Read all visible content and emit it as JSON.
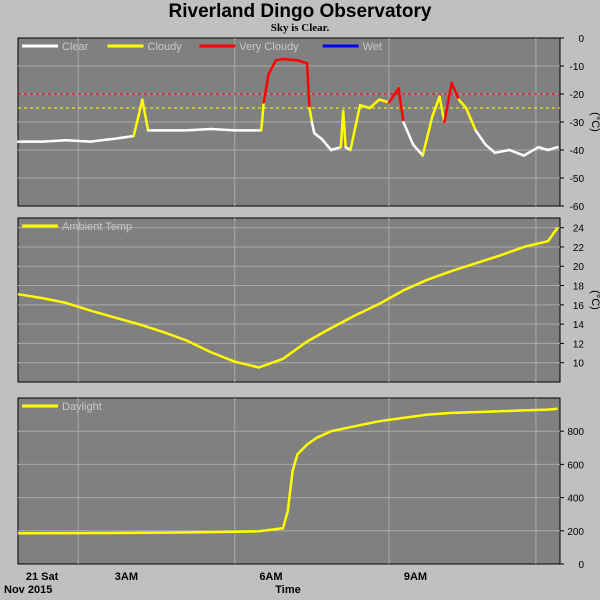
{
  "title": "Riverland Dingo Observatory",
  "subtitle": "Sky is Clear.",
  "x_axis": {
    "tick_labels": [
      "21 Sat",
      "3AM",
      "6AM",
      "9AM"
    ],
    "left_label": "Nov 2015",
    "center_label": "Time"
  },
  "colors": {
    "clear": "#ffffff",
    "cloudy": "#ffff00",
    "very_cloudy": "#ff0000",
    "wet": "#0000ff",
    "panel": "#808080",
    "grid": "#aaaaaa"
  },
  "chart_data": [
    {
      "type": "line",
      "panel": "sky",
      "legend": [
        "Clear",
        "Cloudy",
        "Very Cloudy",
        "Wet"
      ],
      "ylabel": "(°C)",
      "ylim": [
        -60,
        0
      ],
      "yticks": [
        0,
        -10,
        -20,
        -30,
        -40,
        -50,
        -60
      ],
      "thresholds": [
        {
          "value": -20,
          "color": "#ff0000"
        },
        {
          "value": -25,
          "color": "#ffff00"
        }
      ],
      "x_hours": [
        0,
        0.5,
        1,
        1.5,
        2,
        2.4,
        2.5,
        2.58,
        2.7,
        3,
        3.5,
        4,
        4.5,
        5.05,
        5.1,
        5.2,
        5.35,
        5.5,
        5.8,
        6.0,
        6.05,
        6.1,
        6.15,
        6.3,
        6.5,
        6.7,
        6.75,
        6.8,
        6.9,
        7.1,
        7.3,
        7.5,
        7.7,
        7.9,
        8.0,
        8.2,
        8.4,
        8.6,
        8.75,
        8.85,
        9.0,
        9.15,
        9.3,
        9.5,
        9.7,
        9.9,
        10.2,
        10.5,
        10.8,
        11.0,
        11.2
      ],
      "values": [
        -37,
        -37,
        -36.5,
        -37,
        -36,
        -35,
        -28,
        -22,
        -33,
        -33,
        -33,
        -32.5,
        -33,
        -33,
        -23,
        -13,
        -8,
        -7.5,
        -8,
        -9,
        -25,
        -30,
        -34,
        -36,
        -40,
        -39,
        -26,
        -39,
        -40,
        -24,
        -25,
        -22,
        -23,
        -18,
        -30,
        -38,
        -42,
        -28,
        -21,
        -30,
        -16,
        -22,
        -25,
        -33,
        -38,
        -41,
        -40,
        -42,
        -39,
        -40,
        -39
      ]
    },
    {
      "type": "line",
      "panel": "ambient",
      "legend": [
        "Ambient Temp"
      ],
      "ylabel": "(°C)",
      "ylim": [
        8,
        25
      ],
      "yticks": [
        10,
        12,
        14,
        16,
        18,
        20,
        22,
        24
      ],
      "x_hours": [
        0,
        0.5,
        1,
        1.5,
        2,
        2.5,
        3,
        3.5,
        4,
        4.5,
        5,
        5.5,
        6,
        6.5,
        7,
        7.5,
        8,
        8.5,
        9,
        9.5,
        10,
        10.5,
        11,
        11.2
      ],
      "values": [
        17.1,
        16.7,
        16.2,
        15.4,
        14.7,
        14.0,
        13.2,
        12.3,
        11.1,
        10.1,
        9.5,
        10.4,
        12.2,
        13.6,
        14.9,
        16.1,
        17.5,
        18.6,
        19.5,
        20.3,
        21.1,
        22.0,
        22.6,
        24.0
      ]
    },
    {
      "type": "line",
      "panel": "daylight",
      "legend": [
        "Daylight"
      ],
      "ylim": [
        0,
        1000
      ],
      "yticks": [
        0,
        200,
        400,
        600,
        800
      ],
      "x_hours": [
        0,
        1,
        2,
        3,
        4,
        5,
        5.5,
        5.6,
        5.7,
        5.8,
        6.0,
        6.2,
        6.5,
        7.0,
        7.5,
        8.0,
        8.5,
        9.0,
        9.5,
        10.0,
        10.5,
        11.0,
        11.2
      ],
      "values": [
        185,
        186,
        187,
        189,
        192,
        197,
        215,
        320,
        560,
        660,
        720,
        760,
        800,
        830,
        860,
        880,
        900,
        910,
        915,
        920,
        925,
        930,
        935
      ]
    }
  ]
}
